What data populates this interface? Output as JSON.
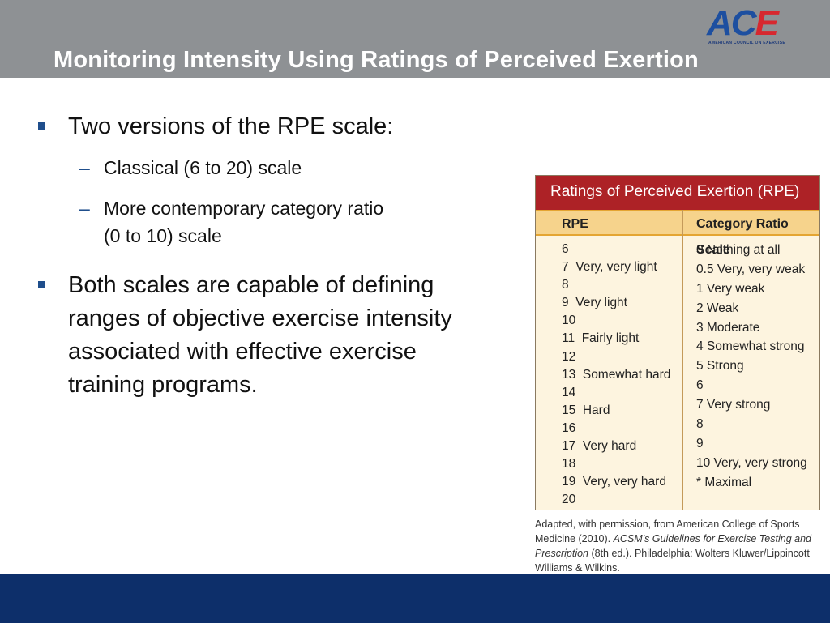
{
  "header": {
    "title": "Monitoring Intensity Using Ratings of Perceived Exertion",
    "logo": {
      "text_main": "AC",
      "text_accent": "E",
      "subtitle": "AMERICAN COUNCIL ON EXERCISE"
    },
    "colors": {
      "background": "#8e9194",
      "title": "#ffffff",
      "logo_blue": "#1d4fa0",
      "logo_red": "#d7282f"
    }
  },
  "bullets": [
    {
      "text": "Two versions of the RPE scale:",
      "sub": [
        {
          "line1": "Classical (6 to 20) scale",
          "line2": ""
        },
        {
          "line1": "More contemporary category ratio",
          "line2": "(0 to 10) scale"
        }
      ]
    },
    {
      "lines": [
        "Both scales are capable of defining",
        "ranges of objective exercise intensity",
        "associated with effective exercise",
        "training programs."
      ]
    }
  ],
  "rpe_table": {
    "title": "Ratings of Perceived Exertion (RPE)",
    "columns": [
      "RPE",
      "Category Ratio Scale"
    ],
    "rpe": [
      "6",
      "7  Very, very light",
      "8",
      "9  Very light",
      "10",
      "11  Fairly light",
      "12",
      "13  Somewhat hard",
      "14",
      "15  Hard",
      "16",
      "17  Very hard",
      "18",
      "19  Very, very hard",
      "20"
    ],
    "category_ratio": [
      "0 Nothing at all",
      "0.5 Very, very weak",
      "1 Very weak",
      "2 Weak",
      "3 Moderate",
      "4 Somewhat strong",
      "5 Strong",
      "6",
      "7 Very strong",
      "8",
      "9",
      "10 Very, very strong",
      "* Maximal"
    ],
    "colors": {
      "title_bg": "#ad2226",
      "header_bg": "#f6d38c",
      "body_bg": "#fdf4df"
    }
  },
  "caption": {
    "before": "Adapted, with permission, from American College of Sports Medicine (2010). ",
    "italic": "ACSM's Guidelines for Exercise Testing and Prescription",
    "after": " (8th ed.). Philadelphia: Wolters Kluwer/Lippincott Williams & Wilkins."
  },
  "footer": {
    "color": "#0d2f6a"
  }
}
